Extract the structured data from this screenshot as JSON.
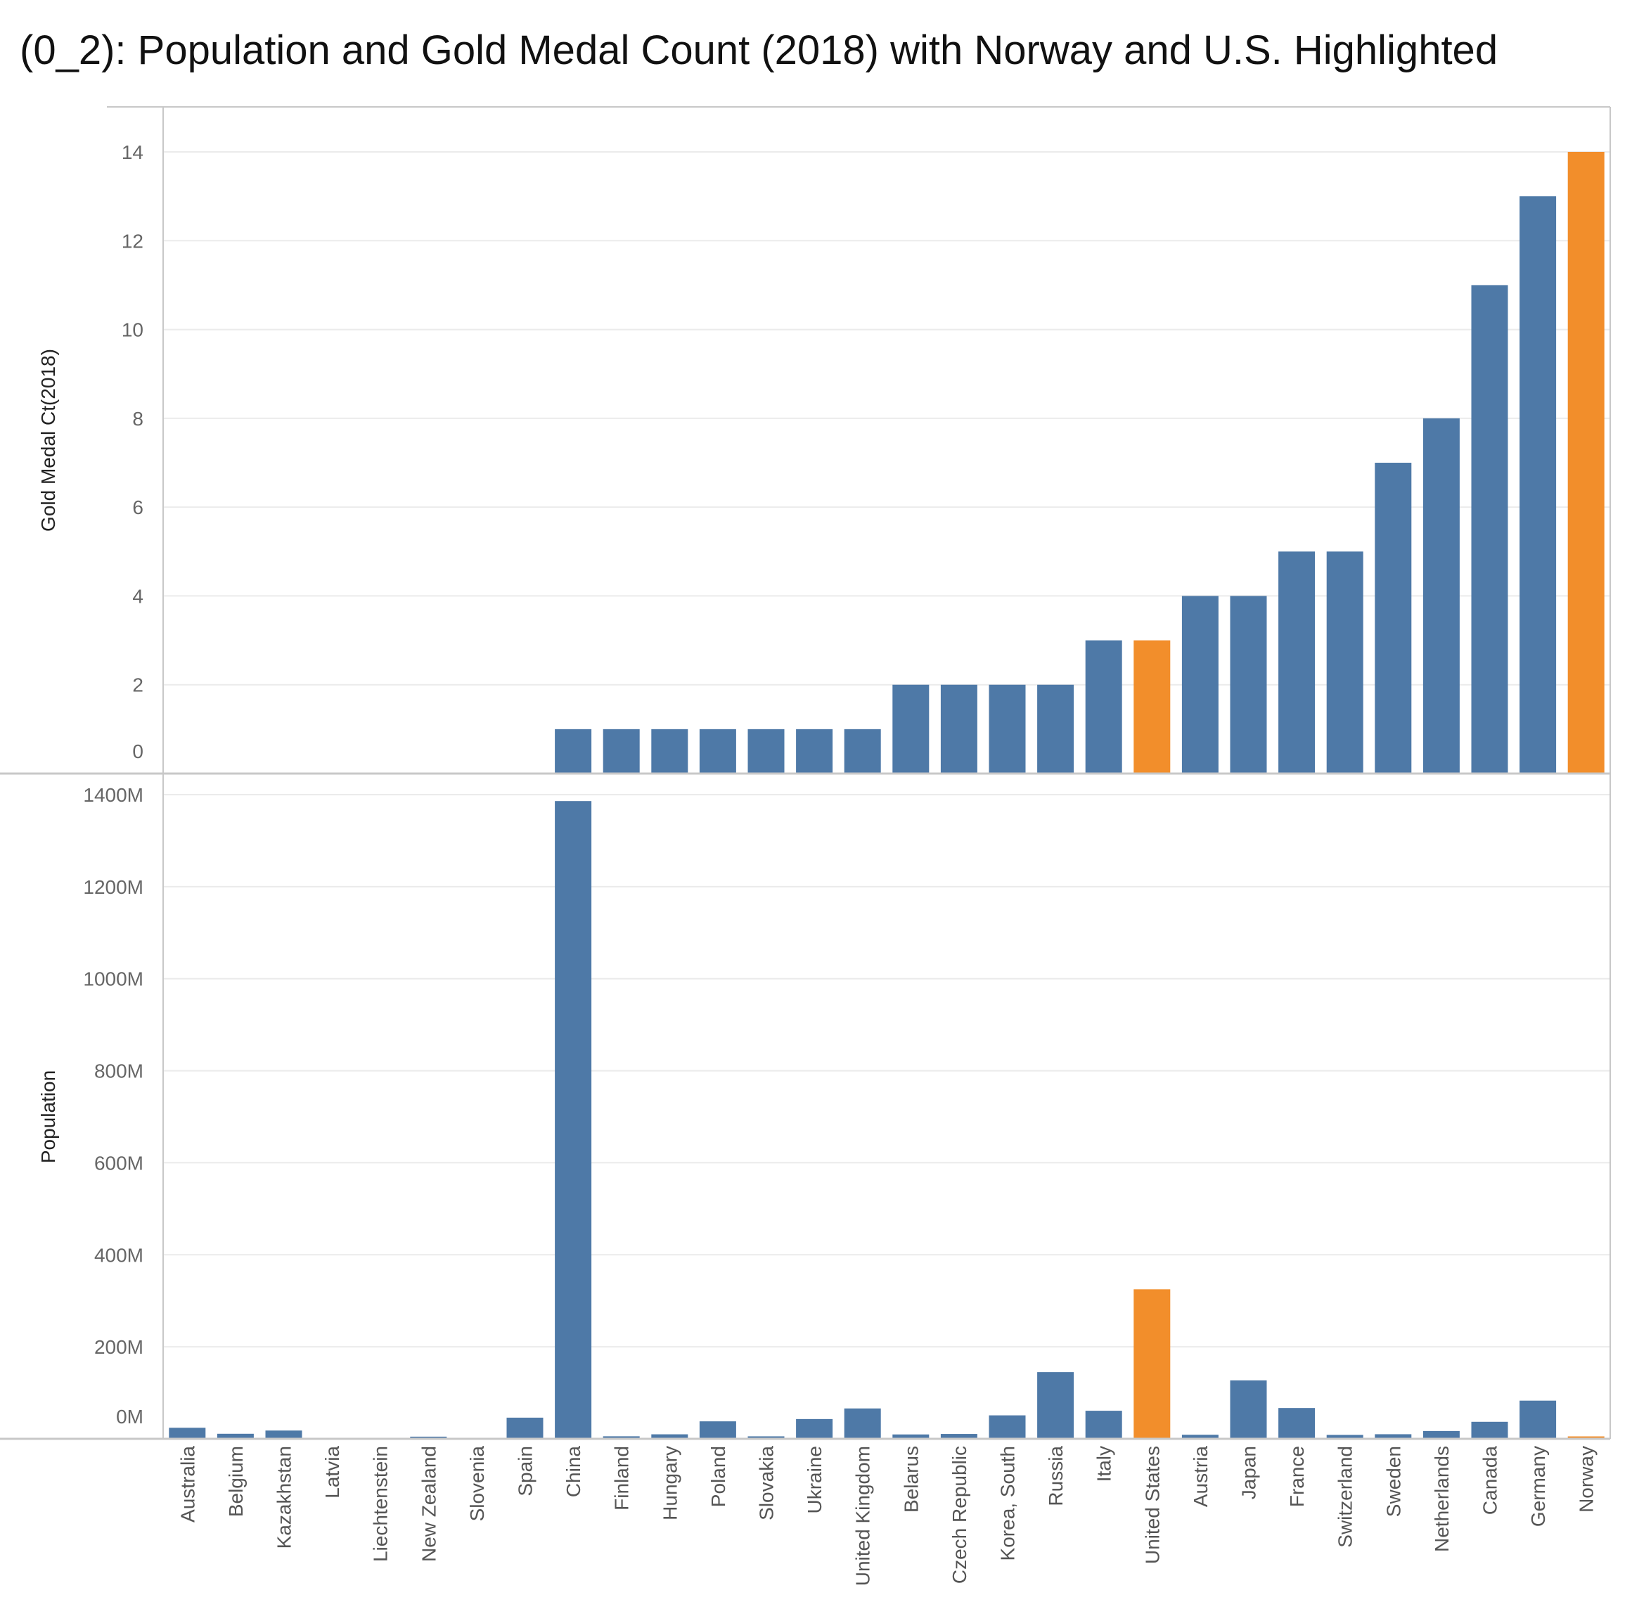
{
  "title": "(0_2): Population and Gold Medal Count (2018) with Norway and U.S. Highlighted",
  "colors": {
    "default": "#4e79a7",
    "highlight": "#f28e2b",
    "grid": "#ebebeb",
    "axis": "#c8c8c8"
  },
  "chart_data": [
    {
      "type": "bar",
      "ylabel": "Gold Medal Ct(2018)",
      "ylim": [
        0,
        14
      ],
      "y_ticks": [
        0,
        2,
        4,
        6,
        8,
        10,
        12,
        14
      ],
      "y_tick_labels": [
        "0",
        "2",
        "4",
        "6",
        "8",
        "10",
        "12",
        "14"
      ],
      "grid": true,
      "categories": [
        "Australia",
        "Belgium",
        "Kazakhstan",
        "Latvia",
        "Liechtenstein",
        "New Zealand",
        "Slovenia",
        "Spain",
        "China",
        "Finland",
        "Hungary",
        "Poland",
        "Slovakia",
        "Ukraine",
        "United Kingdom",
        "Belarus",
        "Czech Republic",
        "Korea, South",
        "Russia",
        "Italy",
        "United States",
        "Austria",
        "Japan",
        "France",
        "Switzerland",
        "Sweden",
        "Netherlands",
        "Canada",
        "Germany",
        "Norway"
      ],
      "values": [
        0,
        0,
        0,
        0,
        0,
        0,
        0,
        0,
        1,
        1,
        1,
        1,
        1,
        1,
        1,
        2,
        2,
        2,
        2,
        3,
        3,
        4,
        4,
        5,
        5,
        7,
        8,
        11,
        13,
        14
      ],
      "highlighted": [
        "United States",
        "Norway"
      ]
    },
    {
      "type": "bar",
      "ylabel": "Population",
      "ylim": [
        0,
        1400000000
      ],
      "y_ticks": [
        0,
        200000000,
        400000000,
        600000000,
        800000000,
        1000000000,
        1200000000,
        1400000000
      ],
      "y_tick_labels": [
        "0M",
        "200M",
        "400M",
        "600M",
        "800M",
        "1000M",
        "1200M",
        "1400M"
      ],
      "grid": true,
      "categories": [
        "Australia",
        "Belgium",
        "Kazakhstan",
        "Latvia",
        "Liechtenstein",
        "New Zealand",
        "Slovenia",
        "Spain",
        "China",
        "Finland",
        "Hungary",
        "Poland",
        "Slovakia",
        "Ukraine",
        "United Kingdom",
        "Belarus",
        "Czech Republic",
        "Korea, South",
        "Russia",
        "Italy",
        "United States",
        "Austria",
        "Japan",
        "France",
        "Switzerland",
        "Sweden",
        "Netherlands",
        "Canada",
        "Germany",
        "Norway"
      ],
      "values": [
        24000000,
        11000000,
        18000000,
        2000000,
        38000,
        4700000,
        2100000,
        46000000,
        1386000000,
        5500000,
        9800000,
        38000000,
        5400000,
        43000000,
        66000000,
        9500000,
        10600000,
        51000000,
        145000000,
        61000000,
        325000000,
        8800000,
        127000000,
        67000000,
        8500000,
        10000000,
        17000000,
        37000000,
        83000000,
        5300000
      ],
      "highlighted": [
        "United States",
        "Norway"
      ]
    }
  ]
}
